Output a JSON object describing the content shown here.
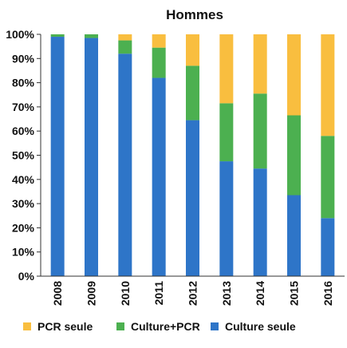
{
  "chart_data": {
    "type": "bar",
    "stacked": true,
    "title": "Hommes",
    "xlabel": "",
    "ylabel": "",
    "categories": [
      "2008",
      "2009",
      "2010",
      "2011",
      "2012",
      "2013",
      "2014",
      "2015",
      "2016"
    ],
    "y_tick_labels": [
      "0%",
      "10%",
      "20%",
      "30%",
      "40%",
      "50%",
      "60%",
      "70%",
      "80%",
      "90%",
      "100%"
    ],
    "ylim": [
      0,
      100
    ],
    "grid": false,
    "legend_position": "bottom",
    "series": [
      {
        "name": "Culture seule",
        "color": "#2E75C8",
        "values": [
          99,
          98.5,
          92,
          82,
          64.5,
          47.5,
          44.5,
          33.5,
          24
        ]
      },
      {
        "name": "Culture+PCR",
        "color": "#4CB050",
        "values": [
          1,
          1.5,
          5.5,
          12.5,
          22.5,
          24,
          31,
          33,
          34
        ]
      },
      {
        "name": "PCR seule",
        "color": "#F9BE3F",
        "values": [
          0,
          0,
          2.5,
          5.5,
          13,
          28.5,
          24.5,
          33.5,
          42
        ]
      }
    ],
    "legend_order": [
      "PCR seule",
      "Culture+PCR",
      "Culture seule"
    ]
  }
}
